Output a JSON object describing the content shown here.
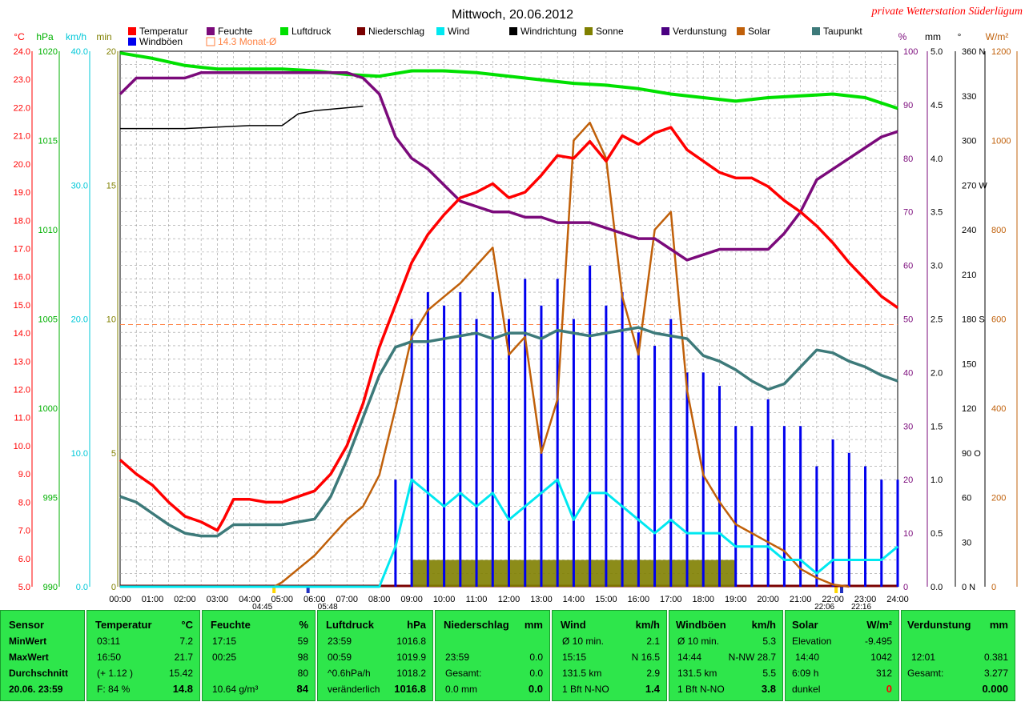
{
  "title": "Mittwoch, 20.06.2012",
  "station": "private Wetterstation Süderlügum",
  "colors": {
    "temperature": "#ff0000",
    "humidity": "#7b0a7b",
    "pressure": "#00e000",
    "precip": "#7a0000",
    "wind": "#00e8f0",
    "gust": "#0000ee",
    "winddir": "#000000",
    "sun": "#808000",
    "evap": "#4b0082",
    "solar": "#c0600a",
    "dewpoint": "#3d7a7a",
    "monthavg": "#ff8040",
    "panel_bg": "#2ee64b",
    "grid": "#9a9a9a"
  },
  "legend": [
    {
      "label": "Temperatur",
      "color": "#ff0000"
    },
    {
      "label": "Feuchte",
      "color": "#7b0a7b"
    },
    {
      "label": "Luftdruck",
      "color": "#00e000"
    },
    {
      "label": "Niederschlag",
      "color": "#7a0000"
    },
    {
      "label": "Wind",
      "color": "#00e8f0"
    },
    {
      "label": "Windrichtung",
      "color": "#000000"
    },
    {
      "label": "Sonne",
      "color": "#808000"
    },
    {
      "label": "Verdunstung",
      "color": "#4b0082"
    },
    {
      "label": "Solar",
      "color": "#c0600a"
    },
    {
      "label": "Taupunkt",
      "color": "#3d7a7a"
    },
    {
      "label": "Windböen",
      "color": "#0000ee"
    },
    {
      "label": "14.3 Monat-Ø",
      "color": "#ff8040"
    }
  ],
  "axes": {
    "temp": {
      "unit": "°C",
      "ticks": [
        "24.0",
        "23.0",
        "22.0",
        "21.0",
        "20.0",
        "19.0",
        "18.0",
        "17.0",
        "16.0",
        "15.0",
        "14.0",
        "13.0",
        "12.0",
        "11.0",
        "10.0",
        "9.0",
        "8.0",
        "7.0",
        "6.0",
        "5.0"
      ]
    },
    "pressure": {
      "unit": "hPa",
      "ticks": [
        "1020",
        "1015",
        "1010",
        "1005",
        "1000",
        "995",
        "990"
      ]
    },
    "wind": {
      "unit": "km/h",
      "ticks": [
        "40.0",
        "30.0",
        "20.0",
        "10.0",
        "0.0"
      ]
    },
    "sun": {
      "unit": "min",
      "ticks": [
        "20",
        "15",
        "10",
        "5",
        "0"
      ]
    },
    "humidity": {
      "unit": "%",
      "ticks": [
        "100",
        "90",
        "80",
        "70",
        "60",
        "50",
        "40",
        "30",
        "20",
        "10",
        "0"
      ]
    },
    "precip": {
      "unit": "mm",
      "ticks": [
        "5.0",
        "4.5",
        "4.0",
        "3.5",
        "3.0",
        "2.5",
        "2.0",
        "1.5",
        "1.0",
        "0.5",
        "0.0"
      ]
    },
    "winddir": {
      "unit": "°",
      "ticks": [
        "360 N",
        "330",
        "300",
        "270 W",
        "240",
        "210",
        "180 S",
        "150",
        "120",
        "90 O",
        "60",
        "30",
        "0 N"
      ]
    },
    "solar": {
      "unit": "W/m²",
      "ticks": [
        "1200",
        "1000",
        "800",
        "600",
        "400",
        "200",
        "0"
      ]
    },
    "time": [
      "00:00",
      "01:00",
      "02:00",
      "03:00",
      "04:00",
      "05:00",
      "06:00",
      "07:00",
      "08:00",
      "09:00",
      "10:00",
      "11:00",
      "12:00",
      "13:00",
      "14:00",
      "15:00",
      "16:00",
      "17:00",
      "18:00",
      "19:00",
      "20:00",
      "21:00",
      "22:00",
      "23:00",
      "24:00"
    ],
    "events": [
      "04:45",
      "05:48",
      "22:06",
      "22:16"
    ]
  },
  "chart_data": {
    "type": "line",
    "title": "Mittwoch, 20.06.2012",
    "x_unit": "h",
    "series": [
      {
        "name": "Temperatur",
        "unit": "°C",
        "x": [
          0,
          0.5,
          1,
          1.5,
          2,
          2.5,
          3,
          3.2,
          3.5,
          4,
          4.5,
          5,
          5.5,
          6,
          6.5,
          7,
          7.5,
          8,
          8.5,
          9,
          9.5,
          10,
          10.5,
          11,
          11.5,
          12,
          12.5,
          13,
          13.5,
          14,
          14.5,
          15,
          15.5,
          16,
          16.5,
          17,
          17.5,
          18,
          18.5,
          19,
          19.5,
          20,
          20.5,
          21,
          21.5,
          22,
          22.5,
          23,
          23.5,
          24
        ],
        "y": [
          9.5,
          9.0,
          8.6,
          8.0,
          7.5,
          7.3,
          7.0,
          7.4,
          8.1,
          8.1,
          8.0,
          8.0,
          8.2,
          8.4,
          9.0,
          10.0,
          11.5,
          13.5,
          15.0,
          16.5,
          17.5,
          18.2,
          18.8,
          19.0,
          19.3,
          18.8,
          19.0,
          19.6,
          20.3,
          20.2,
          20.8,
          20.1,
          21.0,
          20.7,
          21.1,
          21.3,
          20.5,
          20.1,
          19.7,
          19.5,
          19.5,
          19.2,
          18.7,
          18.3,
          17.8,
          17.2,
          16.5,
          15.9,
          15.3,
          14.9
        ]
      },
      {
        "name": "Taupunkt",
        "unit": "°C",
        "x": [
          0,
          0.5,
          1,
          1.5,
          2,
          2.5,
          3,
          3.5,
          4,
          4.5,
          5,
          5.5,
          6,
          6.5,
          7,
          7.5,
          8,
          8.5,
          9,
          9.5,
          10,
          10.5,
          11,
          11.5,
          12,
          12.5,
          13,
          13.5,
          14,
          14.5,
          15,
          15.5,
          16,
          16.5,
          17,
          17.5,
          18,
          18.5,
          19,
          19.5,
          20,
          20.5,
          21,
          21.5,
          22,
          22.5,
          23,
          23.5,
          24
        ],
        "y": [
          8.2,
          8.0,
          7.6,
          7.2,
          6.9,
          6.8,
          6.8,
          7.2,
          7.2,
          7.2,
          7.2,
          7.3,
          7.4,
          8.2,
          9.5,
          11.0,
          12.5,
          13.5,
          13.7,
          13.7,
          13.8,
          13.9,
          14.0,
          13.8,
          14.0,
          14.0,
          13.8,
          14.1,
          14.0,
          13.9,
          14.0,
          14.1,
          14.2,
          14.0,
          13.9,
          13.8,
          13.2,
          13.0,
          12.7,
          12.3,
          12.0,
          12.2,
          12.8,
          13.4,
          13.3,
          13.0,
          12.8,
          12.5,
          12.3
        ]
      },
      {
        "name": "Feuchte",
        "unit": "%",
        "x": [
          0,
          0.5,
          1,
          1.5,
          2,
          2.5,
          3,
          3.5,
          4,
          4.5,
          5,
          5.5,
          6,
          6.5,
          7,
          7.5,
          8,
          8.5,
          9,
          9.5,
          10,
          10.5,
          11,
          11.5,
          12,
          12.5,
          13,
          13.5,
          14,
          14.5,
          15,
          15.5,
          16,
          16.5,
          17,
          17.5,
          18,
          18.5,
          19,
          19.5,
          20,
          20.5,
          21,
          21.5,
          22,
          22.5,
          23,
          23.5,
          24
        ],
        "y": [
          92,
          95,
          95,
          95,
          95,
          96,
          96,
          96,
          96,
          96,
          96,
          96,
          96,
          96,
          96,
          95,
          92,
          84,
          80,
          78,
          75,
          72,
          71,
          70,
          70,
          69,
          69,
          68,
          68,
          68,
          67,
          66,
          65,
          65,
          63,
          61,
          62,
          63,
          63,
          63,
          63,
          66,
          70,
          76,
          78,
          80,
          82,
          84,
          85
        ]
      },
      {
        "name": "Luftdruck",
        "unit": "hPa",
        "x": [
          0,
          1,
          2,
          3,
          4,
          5,
          6,
          7,
          8,
          9,
          10,
          11,
          12,
          13,
          14,
          15,
          16,
          17,
          18,
          19,
          20,
          21,
          22,
          23,
          24
        ],
        "y": [
          1019.9,
          1019.6,
          1019.2,
          1019.0,
          1019.0,
          1019.0,
          1018.9,
          1018.7,
          1018.6,
          1018.9,
          1018.9,
          1018.8,
          1018.6,
          1018.4,
          1018.2,
          1018.1,
          1017.9,
          1017.6,
          1017.4,
          1017.2,
          1017.4,
          1017.5,
          1017.6,
          1017.4,
          1016.8
        ]
      },
      {
        "name": "Solar",
        "unit": "W/m²",
        "x": [
          4.75,
          5,
          5.5,
          6,
          6.5,
          7,
          7.5,
          8,
          8.5,
          9,
          9.5,
          10,
          10.5,
          11,
          11.5,
          12,
          12.5,
          13,
          13.5,
          14,
          14.5,
          15,
          15.5,
          16,
          16.5,
          17,
          17.5,
          18,
          18.5,
          19,
          19.5,
          20,
          20.5,
          21,
          21.5,
          22,
          22.5
        ],
        "y": [
          0,
          10,
          40,
          70,
          110,
          150,
          180,
          250,
          400,
          560,
          620,
          650,
          680,
          720,
          760,
          520,
          560,
          300,
          420,
          1000,
          1040,
          960,
          650,
          520,
          800,
          840,
          440,
          250,
          190,
          140,
          120,
          100,
          80,
          40,
          20,
          5,
          0
        ]
      },
      {
        "name": "Wind",
        "unit": "km/h",
        "x": [
          0,
          1,
          2,
          3,
          4,
          5,
          6,
          7,
          8,
          8.5,
          9,
          9.5,
          10,
          10.5,
          11,
          11.5,
          12,
          12.5,
          13,
          13.5,
          14,
          14.5,
          15,
          15.5,
          16,
          16.5,
          17,
          17.5,
          18,
          18.5,
          19,
          19.5,
          20,
          20.5,
          21,
          21.5,
          22,
          22.5,
          23,
          23.5,
          24
        ],
        "y": [
          0,
          0,
          0,
          0,
          0,
          0,
          0,
          0,
          0,
          3,
          8,
          7,
          6,
          7,
          6,
          7,
          5,
          6,
          7,
          8,
          5,
          7,
          7,
          6,
          5,
          4,
          5,
          4,
          4,
          4,
          3,
          3,
          3,
          2,
          2,
          1,
          2,
          2,
          2,
          2,
          3
        ]
      },
      {
        "name": "Windböen",
        "unit": "km/h",
        "x": [
          0,
          1,
          2,
          3,
          4,
          5,
          6,
          7,
          8,
          8.5,
          9,
          9.5,
          10,
          10.5,
          11,
          11.5,
          12,
          12.5,
          13,
          13.5,
          14,
          14.5,
          15,
          15.5,
          16,
          16.5,
          17,
          17.5,
          18,
          18.5,
          19,
          19.5,
          20,
          20.5,
          21,
          21.5,
          22,
          22.5,
          23,
          23.5,
          24
        ],
        "y": [
          0,
          0,
          0,
          0,
          0,
          0,
          0,
          0,
          0,
          8,
          20,
          22,
          21,
          22,
          20,
          22,
          20,
          23,
          21,
          23,
          20,
          24,
          21,
          22,
          19,
          18,
          20,
          16,
          16,
          15,
          12,
          12,
          14,
          12,
          12,
          9,
          11,
          10,
          9,
          8,
          8
        ]
      },
      {
        "name": "Windrichtung",
        "unit": "°",
        "x": [
          0,
          1,
          2,
          3,
          4,
          5,
          5.5,
          6,
          7,
          7.5
        ],
        "y": [
          308,
          308,
          308,
          309,
          310,
          310,
          318,
          320,
          322,
          323
        ]
      },
      {
        "name": "Sonne",
        "unit": "min",
        "x": [
          5,
          6,
          7,
          8,
          8.5,
          9,
          10,
          11,
          12,
          13,
          14,
          15,
          16,
          17,
          18,
          19,
          20,
          21,
          22,
          23,
          24
        ],
        "y": [
          0,
          0,
          0,
          0,
          0,
          1,
          1,
          1,
          1,
          1,
          1,
          1,
          1,
          1,
          1,
          0,
          0,
          0,
          0,
          0,
          0
        ]
      }
    ],
    "reference_lines": [
      {
        "name": "14.3 Monat-Ø",
        "value": 14.3,
        "unit": "°C"
      }
    ]
  },
  "stats": {
    "sensor": {
      "hdr": "Sensor",
      "rows": [
        "MinWert",
        "MaxWert",
        "Durchschnitt",
        "20.06. 23:59"
      ]
    },
    "temp": {
      "hdr": "Temperatur",
      "unit": "°C",
      "r1a": "03:11",
      "r1b": "7.2",
      "r2a": "16:50",
      "r2b": "21.7",
      "r3a": "(+ 1.12 )",
      "r3b": "15.42",
      "r4a": "F: 84 %",
      "r4b": "14.8"
    },
    "hum": {
      "hdr": "Feuchte",
      "unit": "%",
      "r1a": "17:15",
      "r1b": "59",
      "r2a": "00:25",
      "r2b": "98",
      "r3b": "80",
      "r4a": "10.64 g/m³",
      "r4b": "84"
    },
    "press": {
      "hdr": "Luftdruck",
      "unit": "hPa",
      "r1a": "23:59",
      "r1b": "1016.8",
      "r2a": "00:59",
      "r2b": "1019.9",
      "r3a": "^0.6hPa/h",
      "r3b": "1018.2",
      "r4a": "veränderlich",
      "r4b": "1016.8"
    },
    "precip": {
      "hdr": "Niederschlag",
      "unit": "mm",
      "r2a": "23:59",
      "r2b": "0.0",
      "r3a": "Gesamt:",
      "r3b": "0.0",
      "r4a": "0.0 mm",
      "r4b": "0.0"
    },
    "wind": {
      "hdr": "Wind",
      "unit": "km/h",
      "r1a": "Ø 10 min.",
      "r1b": "2.1",
      "r2a": "15:15",
      "r2b": "N 16.5",
      "r3a": "131.5 km",
      "r3b": "2.9",
      "r4a": "1 Bft N-NO",
      "r4b": "1.4"
    },
    "gust": {
      "hdr": "Windböen",
      "unit": "km/h",
      "r1a": "Ø 10 min.",
      "r1b": "5.3",
      "r2a": "14:44",
      "r2b": "N-NW 28.7",
      "r3a": "131.5 km",
      "r3b": "5.5",
      "r4a": "1 Bft N-NO",
      "r4b": "3.8"
    },
    "solar": {
      "hdr": "Solar",
      "unit": "W/m²",
      "r1a": "Elevation",
      "r1b": "-9.495",
      "r2a": "14:40",
      "r2b": "1042",
      "r3a": "6:09 h",
      "r3b": "312",
      "r4a": "dunkel",
      "r4b": "0"
    },
    "evap": {
      "hdr": "Verdunstung",
      "unit": "mm",
      "r2a": "12:01",
      "r2b": "0.381",
      "r3a": "Gesamt:",
      "r3b": "3.277",
      "r4b": "0.000"
    }
  }
}
